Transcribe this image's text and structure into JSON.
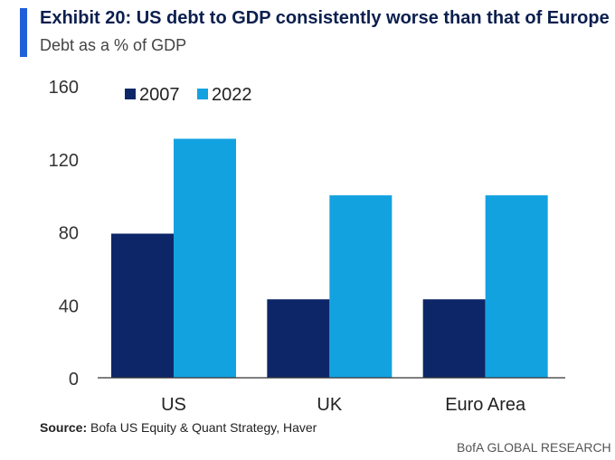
{
  "header": {
    "title": "Exhibit 20: US debt to GDP consistently worse than that of Europe",
    "subtitle": "Debt as a % of GDP"
  },
  "footer": {
    "source_label": "Source:",
    "source_text": " Bofa US Equity & Quant Strategy, Haver",
    "brand": "BofA GLOBAL RESEARCH"
  },
  "colors": {
    "accent": "#1f5fd8",
    "series_2007": "#0d2668",
    "series_2022": "#13a2e0"
  },
  "chart_data": {
    "type": "bar",
    "title": "Exhibit 20: US debt to GDP consistently worse than that of Europe",
    "subtitle": "Debt as a % of GDP",
    "categories": [
      "US",
      "UK",
      "Euro Area"
    ],
    "series": [
      {
        "name": "2007",
        "values": [
          79,
          43,
          43
        ]
      },
      {
        "name": "2022",
        "values": [
          131,
          100,
          100
        ]
      }
    ],
    "ylim": [
      0,
      160
    ],
    "yticks": [
      0,
      40,
      80,
      120,
      160
    ],
    "grid": false,
    "legend": "top-left"
  }
}
